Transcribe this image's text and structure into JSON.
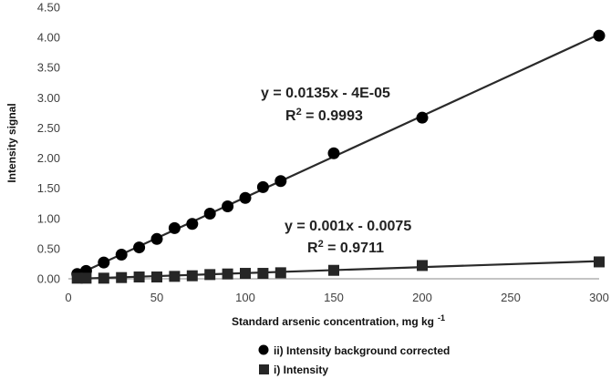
{
  "chart_data": {
    "type": "scatter",
    "xlabel": "Standard arsenic concentration, mg kg",
    "xlabel_sup": "-1",
    "ylabel": "Intensity signal",
    "xlim": [
      0,
      300
    ],
    "ylim": [
      0,
      4.5
    ],
    "x_ticks": [
      "0",
      "50",
      "100",
      "150",
      "200",
      "250",
      "300"
    ],
    "y_ticks": [
      "0.00",
      "0.50",
      "1.00",
      "1.50",
      "2.00",
      "2.50",
      "3.00",
      "3.50",
      "4.00",
      "4.50"
    ],
    "grid": false,
    "legend_position": "bottom",
    "series": [
      {
        "name": "ii) Intensity background corrected",
        "marker": "circle",
        "color": "#000000",
        "x": [
          5,
          10,
          20,
          30,
          40,
          50,
          60,
          70,
          80,
          90,
          100,
          110,
          120,
          150,
          200,
          300
        ],
        "y": [
          0.08,
          0.13,
          0.27,
          0.4,
          0.52,
          0.66,
          0.84,
          0.91,
          1.08,
          1.2,
          1.34,
          1.52,
          1.62,
          2.08,
          2.67,
          4.03
        ],
        "trendline": {
          "slope": 0.0135,
          "intercept": -4e-05
        },
        "equation": "y = 0.0135x - 4E-05",
        "r2_prefix": "R",
        "r2_sup": "2",
        "r2_value": " = 0.9993"
      },
      {
        "name": "i) Intensity",
        "marker": "square",
        "color": "#000000",
        "x": [
          5,
          10,
          20,
          30,
          40,
          50,
          60,
          70,
          80,
          90,
          100,
          110,
          120,
          150,
          200,
          300
        ],
        "y": [
          0.01,
          0.01,
          0.01,
          0.02,
          0.03,
          0.03,
          0.04,
          0.05,
          0.07,
          0.08,
          0.09,
          0.09,
          0.1,
          0.14,
          0.22,
          0.28
        ],
        "trendline": {
          "slope": 0.001,
          "intercept": -0.0075
        },
        "equation": "y = 0.001x - 0.0075",
        "r2_prefix": "R",
        "r2_sup": "2",
        "r2_value": " = 0.9711"
      }
    ]
  }
}
